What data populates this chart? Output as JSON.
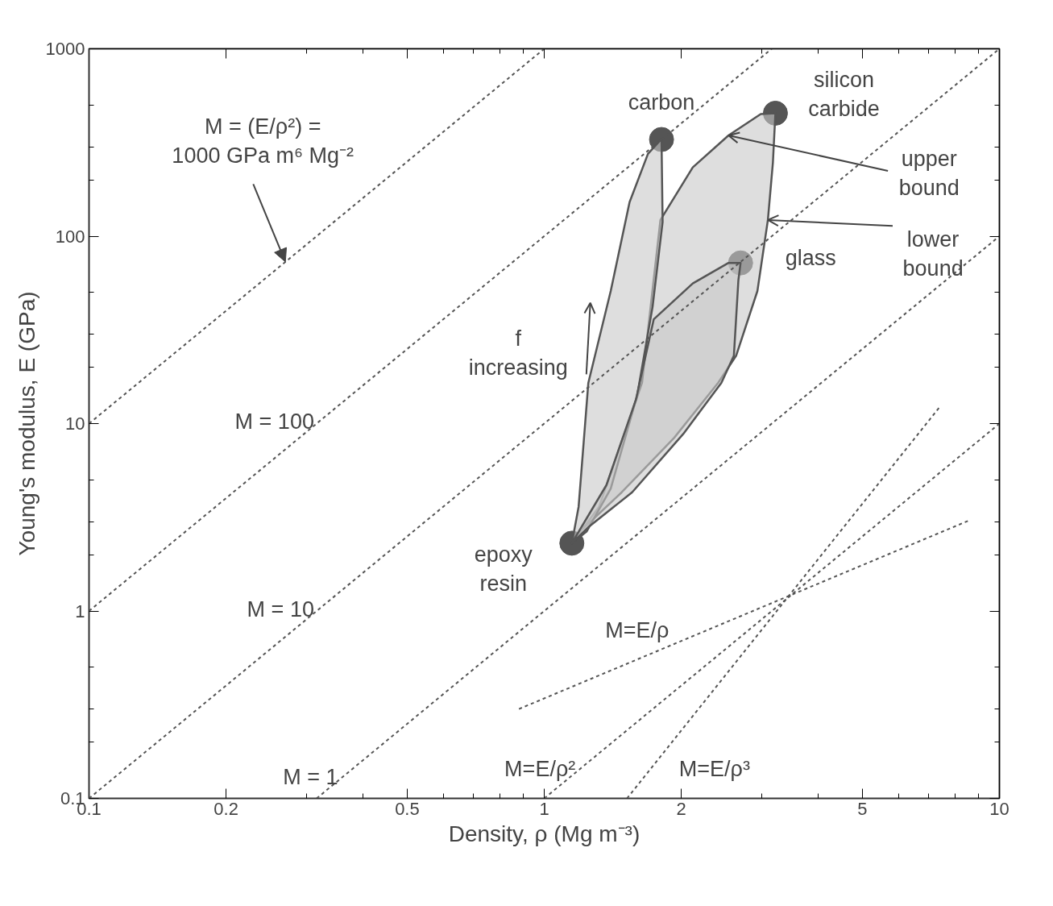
{
  "chart_data": {
    "type": "line",
    "xlabel": "Density, ρ (Mg m⁻³)",
    "ylabel": "Young's modulus, E (GPa)",
    "log": "xy",
    "grid": false,
    "xlim": [
      0.1,
      10
    ],
    "ylim": [
      0.1,
      1000
    ],
    "xticks": [
      0.1,
      0.2,
      {
        "value": 0.3,
        "label": null
      },
      {
        "value": 0.4,
        "label": null
      },
      0.5,
      {
        "value": 0.6,
        "label": null
      },
      {
        "value": 0.7,
        "label": null
      },
      {
        "value": 0.8,
        "label": null
      },
      {
        "value": 0.9,
        "label": null
      },
      1,
      2,
      {
        "value": 3,
        "label": null
      },
      {
        "value": 4,
        "label": null
      },
      5,
      {
        "value": 6,
        "label": null
      },
      {
        "value": 7,
        "label": null
      },
      {
        "value": 8,
        "label": null
      },
      {
        "value": 9,
        "label": null
      },
      10
    ],
    "yticks": [
      0.1,
      {
        "value": 0.2,
        "label": null
      },
      {
        "value": 0.3,
        "label": null
      },
      {
        "value": 0.5,
        "label": null
      },
      1,
      {
        "value": 2,
        "label": null
      },
      {
        "value": 3,
        "label": null
      },
      {
        "value": 5,
        "label": null
      },
      10,
      {
        "value": 20,
        "label": null
      },
      {
        "value": 30,
        "label": null
      },
      {
        "value": 50,
        "label": null
      },
      100,
      {
        "value": 200,
        "label": null
      },
      {
        "value": 300,
        "label": null
      },
      {
        "value": 500,
        "label": null
      },
      1000
    ],
    "series": [
      {
        "line_style": "dashed",
        "color": "#555555",
        "x": [
          0.1,
          1
        ],
        "values": [
          10,
          1000
        ]
      },
      {
        "line_style": "dashed",
        "color": "#555555",
        "x": [
          0.1,
          3.162
        ],
        "values": [
          1,
          1000
        ]
      },
      {
        "line_style": "dashed",
        "color": "#555555",
        "x": [
          0.1,
          10
        ],
        "values": [
          0.1,
          1000
        ]
      },
      {
        "line_style": "dashed",
        "color": "#555555",
        "x": [
          0.3162,
          10
        ],
        "values": [
          0.1,
          100
        ]
      },
      {
        "line_style": "dashed",
        "color": "#555555",
        "x": [
          1,
          10
        ],
        "values": [
          0.1,
          10
        ]
      },
      {
        "line_style": "dashed",
        "color": "#555555",
        "x": [
          0.88,
          8.6
        ],
        "values": [
          0.3,
          3.05
        ]
      },
      {
        "line_style": "dashed",
        "color": "#555555",
        "x": [
          1.52,
          7.4
        ],
        "values": [
          0.1,
          12.3
        ]
      },
      {
        "type": "area",
        "line_style": "solid",
        "color": "#c8c8c8",
        "x": [
          1.15,
          1.32,
          1.64,
          1.8,
          2.12,
          2.54,
          2.99,
          3.22,
          3.18,
          3.1,
          2.94,
          2.64,
          2.41,
          1.93,
          1.48,
          1.2
        ],
        "values": [
          2.3,
          3.6,
          16.5,
          122,
          233,
          345,
          448,
          453,
          248,
          122,
          51,
          23,
          16.5,
          8.4,
          4.3,
          2.66
        ]
      },
      {
        "type": "area",
        "line_style": "solid",
        "color": "#c8c8c8",
        "x": [
          1.15,
          1.19,
          1.25,
          1.4,
          1.54,
          1.69,
          1.81,
          1.82,
          1.73,
          1.6,
          1.4,
          1.24
        ],
        "values": [
          2.3,
          3.6,
          16.5,
          51,
          152,
          275,
          330,
          119,
          42,
          14.1,
          4.5,
          2.66
        ]
      },
      {
        "type": "area",
        "line_style": "solid",
        "color": "#c8c8c8",
        "x": [
          1.15,
          1.37,
          1.59,
          1.74,
          2.12,
          2.54,
          2.7,
          2.67,
          2.61,
          2.45,
          2.02,
          1.56,
          1.25
        ],
        "values": [
          2.3,
          4.7,
          13.4,
          36,
          56,
          72,
          72,
          58,
          23,
          16.5,
          8.8,
          4.3,
          2.8
        ]
      },
      {
        "type": "scatter",
        "marker": "circle",
        "color": "#555555",
        "x": [
          1.15,
          1.81,
          3.22,
          2.7
        ],
        "values": [
          2.3,
          328,
          453,
          72
        ]
      }
    ],
    "annotations": [
      {
        "text": "M = (E/ρ²) =\n1000 GPa m⁶ Mg⁻²",
        "x": 0.27,
        "y": 72.9
      },
      {
        "text": "M = 100",
        "x": 0.32,
        "y": 10.24
      },
      {
        "text": "M = 10",
        "x": 0.32,
        "y": 1.024
      },
      {
        "text": "M = 1",
        "x": 0.361,
        "y": 0.1303
      },
      {
        "text": "M=E/ρ",
        "x": 1.6,
        "y": 0.545
      },
      {
        "text": "M=E/ρ²",
        "x": 1.2,
        "y": 0.144
      },
      {
        "text": "M=E/ρ³",
        "x": 1.93,
        "y": 0.205
      },
      {
        "text": "carbon",
        "x": 1.81,
        "y": 328
      },
      {
        "text": "silicon\ncarbide",
        "x": 3.22,
        "y": 453
      },
      {
        "text": "glass",
        "x": 2.7,
        "y": 72
      },
      {
        "text": "epoxy\nresin",
        "x": 1.15,
        "y": 2.3
      },
      {
        "text": "upper\nbound",
        "x": 2.54,
        "y": 345
      },
      {
        "text": "lower\nbound",
        "x": 3.1,
        "y": 122
      },
      {
        "text": "f\nincreasing",
        "x": 1.25,
        "y": 16.5
      }
    ]
  }
}
